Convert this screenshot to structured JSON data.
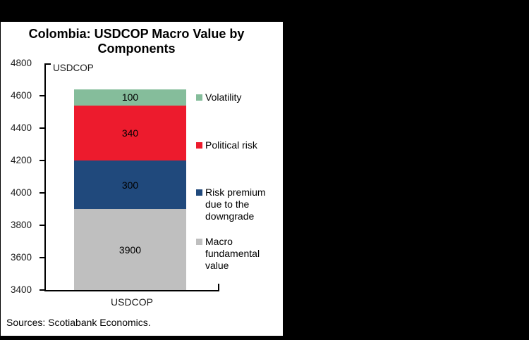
{
  "window": {
    "background_color": "#000000",
    "panel_background_color": "#FFFFFF"
  },
  "chart_data": {
    "type": "bar",
    "stacked": true,
    "title": "Colombia: USDCOP Macro Value by Components",
    "inner_axis_unit_label": "USDCOP",
    "categories": [
      "USDCOP"
    ],
    "xlabel": "",
    "ylabel": "USDCOP",
    "ylim": [
      3400,
      4800
    ],
    "yticks": [
      4800,
      4600,
      4400,
      4200,
      4000,
      3800,
      3600,
      3400
    ],
    "grid": false,
    "legend_position": "right",
    "bar_total_top_value": 4640,
    "segments_bottom_to_top": [
      {
        "name": "Macro fundamental value",
        "label": "3900",
        "from": 3400,
        "to": 3900,
        "color": "#BFBFBF"
      },
      {
        "name": "Risk premium due to the downgrade",
        "label": "300",
        "from": 3900,
        "to": 4200,
        "color": "#20497C"
      },
      {
        "name": "Political risk",
        "label": "340",
        "from": 4200,
        "to": 4540,
        "color": "#ED1B2D"
      },
      {
        "name": "Volatility",
        "label": "100",
        "from": 4540,
        "to": 4640,
        "color": "#85BD9B"
      }
    ],
    "legend_top_to_bottom": [
      {
        "name": "Volatility",
        "color": "#85BD9B"
      },
      {
        "name": "Political risk",
        "color": "#ED1B2D"
      },
      {
        "name": "Risk premium due to the downgrade",
        "color": "#20497C"
      },
      {
        "name": "Macro fundamental value",
        "color": "#BFBFBF"
      }
    ]
  },
  "footer": {
    "sources": "Sources: Scotiabank Economics."
  }
}
